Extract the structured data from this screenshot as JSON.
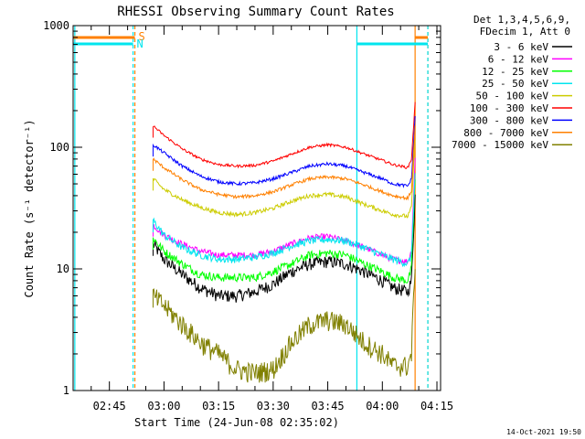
{
  "chart_data": {
    "type": "line",
    "title": "RHESSI Observing Summary Count Rates",
    "xlabel": "Start Time (24-Jun-08 02:35:02)",
    "ylabel": "Count Rate (s⁻¹ detector⁻¹)",
    "yscale": "log",
    "ylim": [
      1,
      1000
    ],
    "xlim": [
      "02:35:02",
      "04:16:00"
    ],
    "y_ticks": [
      "1",
      "10",
      "100",
      "1000"
    ],
    "x_ticks": [
      "02:45",
      "03:00",
      "03:15",
      "03:30",
      "03:45",
      "04:00",
      "04:15"
    ],
    "grid": false,
    "legend_position": "right",
    "legend_header": [
      "Det 1,3,4,5,6,9,",
      "FDecim 1, Att 0"
    ],
    "annotations": {
      "s_marker": "S",
      "n_marker": "N"
    },
    "footer": "14-Oct-2021 19:50",
    "flag_intervals": {
      "saa": {
        "label": "S",
        "color": "#ff8000",
        "ranges": [
          [
            "02:35:02",
            "02:52:00"
          ],
          [
            "04:09:00",
            "04:12:30"
          ]
        ]
      },
      "night": {
        "label": "N",
        "color": "#00e5ee",
        "ranges": [
          [
            "02:35:02",
            "02:51:30"
          ],
          [
            "03:53:00",
            "04:12:30"
          ]
        ]
      }
    },
    "boundaries": [
      {
        "time": "02:35:30",
        "color": "#00e5ee",
        "style": "solid"
      },
      {
        "time": "02:51:30",
        "color": "#00e5ee",
        "style": "dashed"
      },
      {
        "time": "02:52:00",
        "color": "#ff8000",
        "style": "dashed"
      },
      {
        "time": "03:53:00",
        "color": "#00e5ee",
        "style": "solid"
      },
      {
        "time": "04:09:00",
        "color": "#ff8000",
        "style": "solid"
      },
      {
        "time": "04:12:30",
        "color": "#ff8000",
        "style": "dashed"
      },
      {
        "time": "04:12:30",
        "color": "#00e5ee",
        "style": "dashed"
      }
    ],
    "x": [
      "02:57",
      "03:00",
      "03:05",
      "03:10",
      "03:15",
      "03:20",
      "03:25",
      "03:30",
      "03:35",
      "03:40",
      "03:45",
      "03:50",
      "03:55",
      "04:00",
      "04:03",
      "04:07",
      "04:08",
      "04:09"
    ],
    "series": [
      {
        "name": "3 - 6 keV",
        "color": "#000000",
        "noise": 0.12,
        "values": [
          16,
          12,
          9,
          7,
          6,
          6,
          6.5,
          7.5,
          9.5,
          11,
          11.5,
          11,
          9.5,
          8,
          7,
          6.5,
          8,
          40
        ]
      },
      {
        "name": "6 - 12 keV",
        "color": "#ff00ff",
        "noise": 0.06,
        "values": [
          23,
          19,
          16,
          14,
          13,
          13,
          13,
          14,
          16,
          18,
          18.5,
          17,
          15,
          13,
          12,
          11.5,
          14,
          80
        ]
      },
      {
        "name": "12 - 25 keV",
        "color": "#00ff00",
        "noise": 0.08,
        "values": [
          18,
          14,
          11,
          9,
          8.5,
          8.5,
          8.5,
          9.5,
          11,
          13,
          13.5,
          13,
          11,
          9.5,
          8.5,
          8,
          10,
          55
        ]
      },
      {
        "name": "25 - 50 keV",
        "color": "#00e5ee",
        "noise": 0.07,
        "values": [
          25,
          19,
          15,
          13,
          12,
          12,
          12.5,
          13.5,
          15.5,
          17,
          17.5,
          17,
          15,
          13,
          12,
          11,
          13,
          60
        ]
      },
      {
        "name": "50 - 100 keV",
        "color": "#cccc00",
        "noise": 0.04,
        "values": [
          55,
          45,
          37,
          32,
          29,
          28,
          29,
          31.5,
          36,
          40,
          41,
          39,
          34,
          30,
          28,
          27,
          32,
          120
        ]
      },
      {
        "name": "100 - 300 keV",
        "color": "#ff0000",
        "noise": 0.025,
        "values": [
          150,
          125,
          97,
          80,
          72,
          70,
          71,
          77,
          88,
          100,
          105,
          100,
          88,
          78,
          72,
          68,
          80,
          230
        ]
      },
      {
        "name": "300 - 800 keV",
        "color": "#0000ff",
        "noise": 0.03,
        "values": [
          105,
          90,
          70,
          58,
          52,
          50,
          51,
          55,
          62,
          70,
          73,
          70,
          62,
          55,
          50,
          48,
          55,
          180
        ]
      },
      {
        "name": "800 - 7000 keV",
        "color": "#ff8000",
        "noise": 0.03,
        "values": [
          80,
          68,
          54,
          45,
          41,
          39,
          40,
          43,
          49,
          55,
          57,
          55,
          49,
          43,
          40,
          38,
          44,
          150
        ]
      },
      {
        "name": "7000 - 15000 keV",
        "color": "#808000",
        "noise": 0.2,
        "values": [
          6,
          5,
          3.5,
          2.5,
          2,
          1.5,
          1.4,
          1.5,
          2.5,
          3.5,
          3.8,
          3.5,
          2.5,
          2,
          1.6,
          1.6,
          2,
          12
        ]
      }
    ]
  }
}
